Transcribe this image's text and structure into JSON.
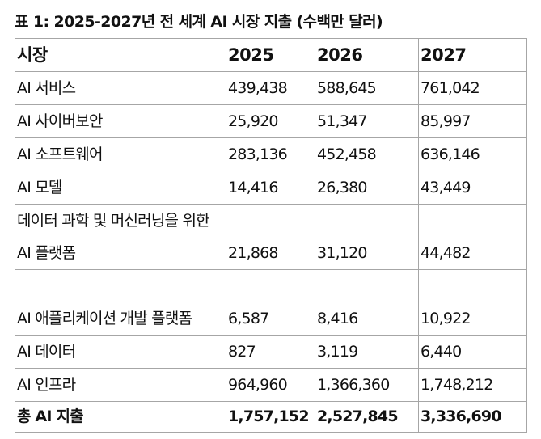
{
  "caption": "표 1: 2025-2027년 전 세계 AI 시장 지출 (수백만 달러)",
  "table": {
    "headers": [
      "시장",
      "2025",
      "2026",
      "2027"
    ],
    "rows": [
      {
        "market": "AI 서비스",
        "y2025": "439,438",
        "y2026": "588,645",
        "y2027": "761,042"
      },
      {
        "market": "AI 사이버보안",
        "y2025": "25,920",
        "y2026": "51,347",
        "y2027": "85,997"
      },
      {
        "market": "AI 소프트웨어",
        "y2025": "283,136",
        "y2026": "452,458",
        "y2027": "636,146"
      },
      {
        "market": "AI 모델",
        "y2025": "14,416",
        "y2026": "26,380",
        "y2027": "43,449"
      },
      {
        "market": "데이터 과학 및 머신러닝을 위한 AI 플랫폼",
        "y2025": "21,868",
        "y2026": "31,120",
        "y2027": "44,482"
      },
      {
        "market": "AI 애플리케이션 개발 플랫폼",
        "y2025": "6,587",
        "y2026": "8,416",
        "y2027": "10,922"
      },
      {
        "market": "AI 데이터",
        "y2025": "827",
        "y2026": "3,119",
        "y2027": "6,440"
      },
      {
        "market": "AI 인프라",
        "y2025": "964,960",
        "y2026": "1,366,360",
        "y2027": "1,748,212"
      }
    ],
    "total": {
      "market": "총 AI 지출",
      "y2025": "1,757,152",
      "y2026": "2,527,845",
      "y2027": "3,336,690"
    }
  }
}
